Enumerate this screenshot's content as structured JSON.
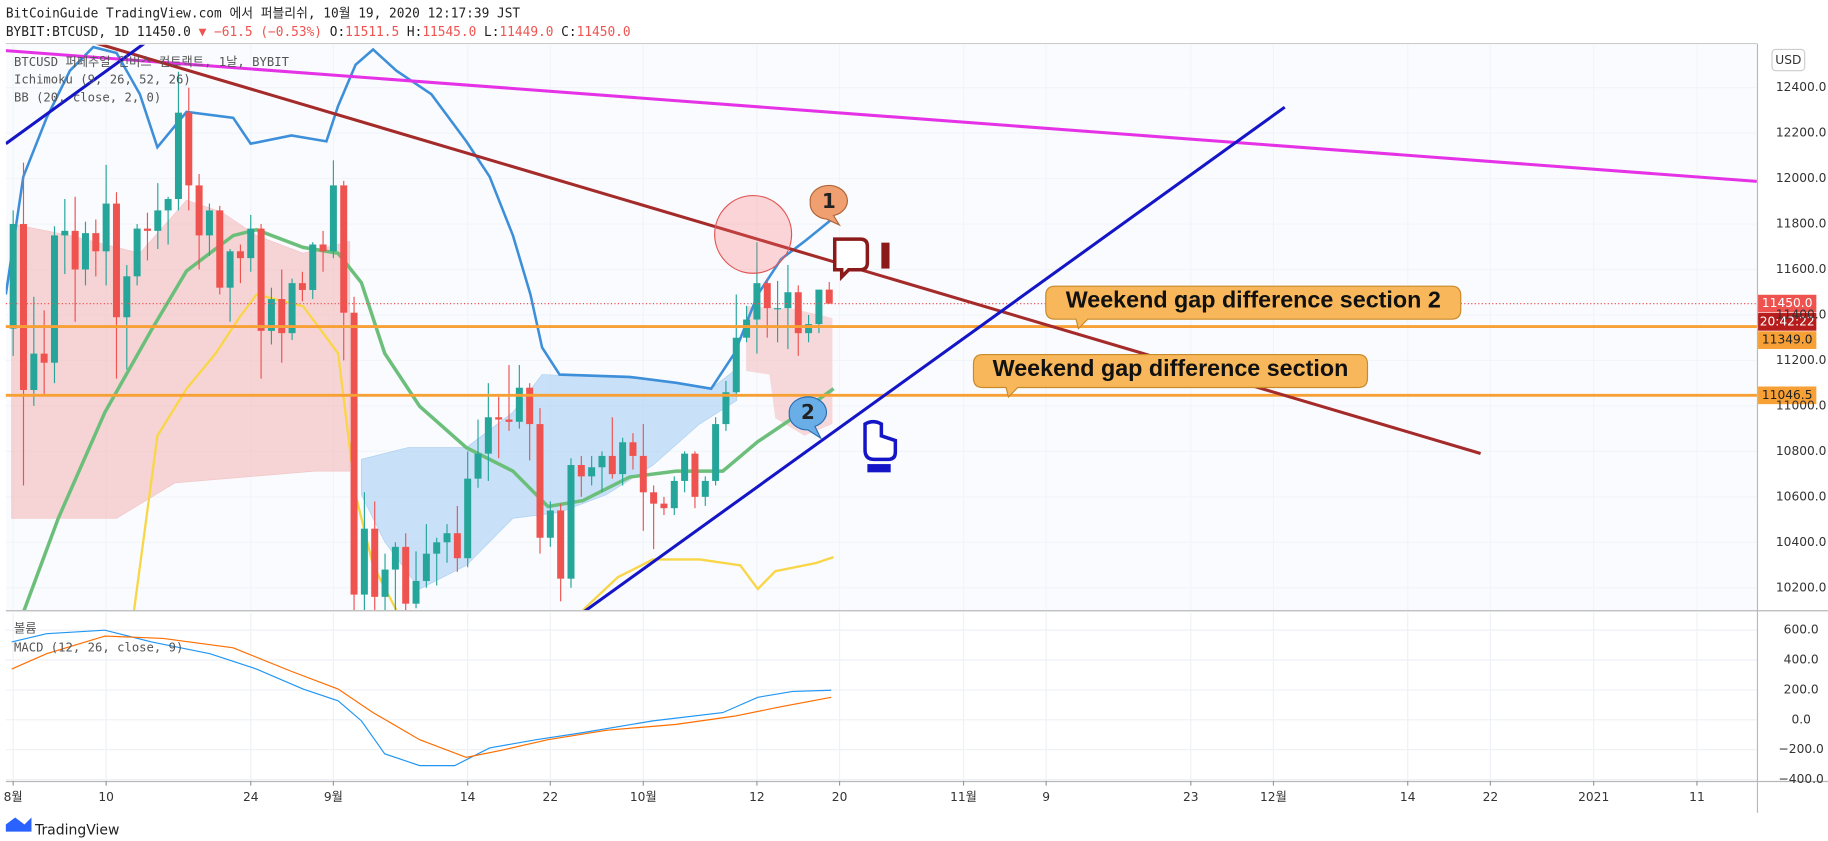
{
  "header": {
    "line1": "BitCoinGuide TradingView.com 에서 퍼블리쉬, 10월 19, 2020 12:17:39 JST",
    "symbol": "BYBIT:BTCUSD, 1D 11450.0",
    "change": "▼ −61.5 (−0.53%)",
    "o_label": "O:",
    "o": "11511.5",
    "h_label": "H:",
    "h": "11545.0",
    "l_label": "L:",
    "l": "11449.0",
    "c_label": "C:",
    "c": "11450.0"
  },
  "footer": "TradingView",
  "chart_data": [
    {
      "type": "candlestick",
      "title": "BTCUSD 퍼페추얼 인버스 컨트랙트, 1날, BYBIT",
      "indicators": [
        "Ichimoku (9, 26, 52, 26)",
        "BB (20, close, 2, 0)"
      ],
      "currency": "USD",
      "up_color": "#26a69a",
      "down_color": "#ef5350",
      "grid": true,
      "x": [
        0,
        1,
        2,
        3,
        4,
        5,
        6,
        7,
        8,
        9,
        10,
        11,
        12,
        13,
        14,
        15,
        16,
        17,
        18,
        19,
        20,
        21,
        22,
        23,
        24,
        25,
        26,
        27,
        28,
        29,
        30,
        31,
        32,
        33,
        34,
        35,
        36,
        37,
        38,
        39,
        40,
        41,
        42,
        43,
        44,
        45,
        46,
        47,
        48,
        49,
        50,
        51,
        52,
        53,
        54,
        55,
        56,
        57,
        58,
        59,
        60,
        61,
        62,
        63,
        64,
        65,
        66,
        67,
        68,
        69,
        70,
        71,
        72,
        73,
        74,
        75,
        76,
        77,
        78,
        79
      ],
      "ohlc": [
        [
          11340,
          11860,
          11220,
          11800
        ],
        [
          11800,
          12070,
          10650,
          11070
        ],
        [
          11070,
          11480,
          11000,
          11230
        ],
        [
          11230,
          11420,
          11050,
          11190
        ],
        [
          11190,
          11790,
          11100,
          11750
        ],
        [
          11750,
          11910,
          11580,
          11770
        ],
        [
          11770,
          11920,
          11370,
          11600
        ],
        [
          11600,
          11810,
          11530,
          11760
        ],
        [
          11760,
          11820,
          11570,
          11680
        ],
        [
          11680,
          12060,
          11530,
          11890
        ],
        [
          11890,
          11940,
          11120,
          11390
        ],
        [
          11390,
          11620,
          11160,
          11570
        ],
        [
          11570,
          11800,
          11530,
          11780
        ],
        [
          11780,
          11850,
          11640,
          11770
        ],
        [
          11770,
          11980,
          11690,
          11860
        ],
        [
          11860,
          11920,
          11710,
          11910
        ],
        [
          11910,
          12470,
          11860,
          12290
        ],
        [
          12290,
          12400,
          11860,
          11970
        ],
        [
          11970,
          12020,
          11600,
          11750
        ],
        [
          11750,
          11890,
          11660,
          11860
        ],
        [
          11860,
          11880,
          11490,
          11520
        ],
        [
          11520,
          11690,
          11370,
          11680
        ],
        [
          11680,
          11710,
          11540,
          11650
        ],
        [
          11650,
          11840,
          11590,
          11780
        ],
        [
          11780,
          11800,
          11120,
          11330
        ],
        [
          11330,
          11520,
          11270,
          11470
        ],
        [
          11470,
          11600,
          11190,
          11320
        ],
        [
          11320,
          11560,
          11290,
          11540
        ],
        [
          11540,
          11590,
          11460,
          11510
        ],
        [
          11510,
          11720,
          11470,
          11710
        ],
        [
          11710,
          11770,
          11590,
          11680
        ],
        [
          11680,
          12080,
          11650,
          11970
        ],
        [
          11970,
          11990,
          11200,
          11410
        ],
        [
          11410,
          11480,
          10050,
          10170
        ],
        [
          10170,
          10620,
          9870,
          10460
        ],
        [
          10460,
          10580,
          9900,
          10160
        ],
        [
          10160,
          10350,
          10010,
          10280
        ],
        [
          10280,
          10400,
          9860,
          10380
        ],
        [
          10380,
          10440,
          10020,
          10130
        ],
        [
          10130,
          10360,
          10110,
          10230
        ],
        [
          10230,
          10480,
          10200,
          10350
        ],
        [
          10350,
          10420,
          10210,
          10400
        ],
        [
          10400,
          10480,
          10310,
          10440
        ],
        [
          10440,
          10560,
          10270,
          10330
        ],
        [
          10330,
          10800,
          10290,
          10680
        ],
        [
          10680,
          10940,
          10640,
          10790
        ],
        [
          10790,
          11100,
          10670,
          10950
        ],
        [
          10950,
          11040,
          10770,
          10940
        ],
        [
          10940,
          11180,
          10890,
          10930
        ],
        [
          10930,
          11180,
          10900,
          11080
        ],
        [
          11080,
          11100,
          10760,
          10920
        ],
        [
          10920,
          10990,
          10350,
          10420
        ],
        [
          10420,
          10580,
          10380,
          10540
        ],
        [
          10540,
          10570,
          10140,
          10240
        ],
        [
          10240,
          10770,
          10200,
          10740
        ],
        [
          10740,
          10780,
          10600,
          10690
        ],
        [
          10690,
          10780,
          10650,
          10730
        ],
        [
          10730,
          10800,
          10620,
          10780
        ],
        [
          10780,
          10950,
          10680,
          10700
        ],
        [
          10700,
          10860,
          10650,
          10840
        ],
        [
          10840,
          10880,
          10720,
          10780
        ],
        [
          10780,
          10920,
          10450,
          10620
        ],
        [
          10620,
          10650,
          10370,
          10570
        ],
        [
          10570,
          10600,
          10520,
          10550
        ],
        [
          10550,
          10690,
          10520,
          10670
        ],
        [
          10670,
          10800,
          10620,
          10790
        ],
        [
          10790,
          10800,
          10550,
          10600
        ],
        [
          10600,
          10690,
          10560,
          10670
        ],
        [
          10670,
          10950,
          10650,
          10920
        ],
        [
          10920,
          11110,
          10890,
          11060
        ],
        [
          11060,
          11490,
          11040,
          11300
        ],
        [
          11300,
          11440,
          11280,
          11380
        ],
        [
          11380,
          11720,
          11230,
          11540
        ],
        [
          11540,
          11560,
          11300,
          11430
        ],
        [
          11430,
          11550,
          11280,
          11430
        ],
        [
          11430,
          11620,
          11250,
          11500
        ],
        [
          11500,
          11530,
          11220,
          11320
        ],
        [
          11320,
          11400,
          11280,
          11360
        ],
        [
          11360,
          11510,
          11320,
          11511.5
        ],
        [
          11511.5,
          11545,
          11449,
          11450
        ]
      ],
      "xlim": [
        -0.71,
        168.8
      ],
      "xticks": [
        {
          "value": 0,
          "label": "8월"
        },
        {
          "value": 9,
          "label": "10"
        },
        {
          "value": 23,
          "label": "24"
        },
        {
          "value": 31,
          "label": "9월"
        },
        {
          "value": 44,
          "label": "14"
        },
        {
          "value": 52,
          "label": "22"
        },
        {
          "value": 61,
          "label": "10월"
        },
        {
          "value": 72,
          "label": "12"
        },
        {
          "value": 80,
          "label": "20"
        },
        {
          "value": 92,
          "label": "11월"
        },
        {
          "value": 100,
          "label": "9"
        },
        {
          "value": 114,
          "label": "23"
        },
        {
          "value": 122,
          "label": "12월"
        },
        {
          "value": 135,
          "label": "14"
        },
        {
          "value": 143,
          "label": "22"
        },
        {
          "value": 153,
          "label": "2021"
        },
        {
          "value": 163,
          "label": "11"
        }
      ],
      "ylim": [
        10101.6,
        12588.6
      ],
      "yticks": [
        {
          "value": 10200,
          "label": "10200.0"
        },
        {
          "value": 10400,
          "label": "10400.0"
        },
        {
          "value": 10600,
          "label": "10600.0"
        },
        {
          "value": 10800,
          "label": "10800.0"
        },
        {
          "value": 11000,
          "label": "11000.0"
        },
        {
          "value": 11200,
          "label": "11200.0"
        },
        {
          "value": 11400,
          "label": "11400.0"
        },
        {
          "value": 11600,
          "label": "11600.0"
        },
        {
          "value": 11800,
          "label": "11800.0"
        },
        {
          "value": 12000,
          "label": "12000.0"
        },
        {
          "value": 12200,
          "label": "12200.0"
        },
        {
          "value": 12400,
          "label": "12400.0"
        }
      ],
      "last_price": {
        "value": 11450,
        "label": "11450.0",
        "color": "#ef5350"
      },
      "countdown": "20:42:22",
      "levels": [
        {
          "value": 11349.0,
          "label": "11349.0",
          "color": "#f7a035"
        },
        {
          "value": 11046.5,
          "label": "11046.5",
          "color": "#f7a035"
        }
      ],
      "annotations": [
        "1",
        "2",
        "Weekend gap difference section 2",
        "Weekend gap difference section"
      ]
    },
    {
      "type": "macd",
      "panel_label": "볼륨",
      "title": "MACD (12, 26, close, 9)",
      "ylim": [
        -409,
        718
      ],
      "yticks": [
        {
          "value": 600,
          "label": "600.0"
        },
        {
          "value": 400,
          "label": "400.0"
        },
        {
          "value": 200,
          "label": "200.0"
        },
        {
          "value": 0,
          "label": "0.0"
        },
        {
          "value": -200,
          "label": "−200.0"
        },
        {
          "value": -400,
          "label": "−400.0"
        }
      ]
    }
  ]
}
